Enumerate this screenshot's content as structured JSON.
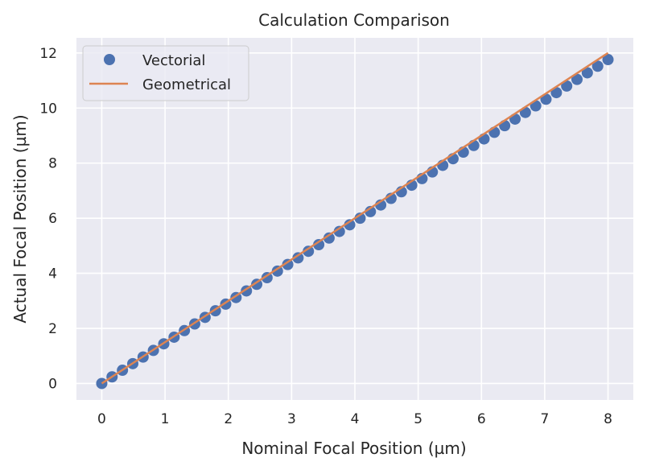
{
  "chart_data": {
    "type": "scatter",
    "title": "Calculation Comparison",
    "xlabel": "Nominal Focal Position (µm)",
    "ylabel": "Actual Focal Position (µm)",
    "xlim": [
      -0.4,
      8.4
    ],
    "ylim": [
      -0.6,
      12.55
    ],
    "xticks": [
      0,
      1,
      2,
      3,
      4,
      5,
      6,
      7,
      8
    ],
    "yticks": [
      0,
      2,
      4,
      6,
      8,
      10,
      12
    ],
    "grid": true,
    "legend_position": "top-left",
    "series": [
      {
        "name": "Vectorial",
        "kind": "scatter",
        "color": "#4c72b0",
        "x": [
          0,
          0.163,
          0.327,
          0.49,
          0.653,
          0.816,
          0.98,
          1.143,
          1.306,
          1.469,
          1.633,
          1.796,
          1.959,
          2.122,
          2.286,
          2.449,
          2.612,
          2.776,
          2.939,
          3.102,
          3.265,
          3.429,
          3.592,
          3.755,
          3.918,
          4.082,
          4.245,
          4.408,
          4.571,
          4.735,
          4.898,
          5.061,
          5.224,
          5.388,
          5.551,
          5.714,
          5.878,
          6.041,
          6.204,
          6.367,
          6.531,
          6.694,
          6.857,
          7.02,
          7.184,
          7.347,
          7.51,
          7.673,
          7.837,
          8.0
        ],
        "y": [
          0,
          0.24,
          0.48,
          0.72,
          0.96,
          1.2,
          1.44,
          1.68,
          1.92,
          2.16,
          2.4,
          2.64,
          2.88,
          3.12,
          3.36,
          3.6,
          3.84,
          4.08,
          4.32,
          4.56,
          4.8,
          5.04,
          5.28,
          5.52,
          5.76,
          6.0,
          6.24,
          6.48,
          6.72,
          6.96,
          7.2,
          7.44,
          7.68,
          7.92,
          8.16,
          8.4,
          8.64,
          8.88,
          9.12,
          9.36,
          9.6,
          9.84,
          10.08,
          10.32,
          10.56,
          10.8,
          11.04,
          11.28,
          11.52,
          11.76
        ]
      },
      {
        "name": "Geometrical",
        "kind": "line",
        "color": "#dd8452",
        "x": [
          0,
          8
        ],
        "y": [
          0,
          12
        ]
      }
    ]
  }
}
